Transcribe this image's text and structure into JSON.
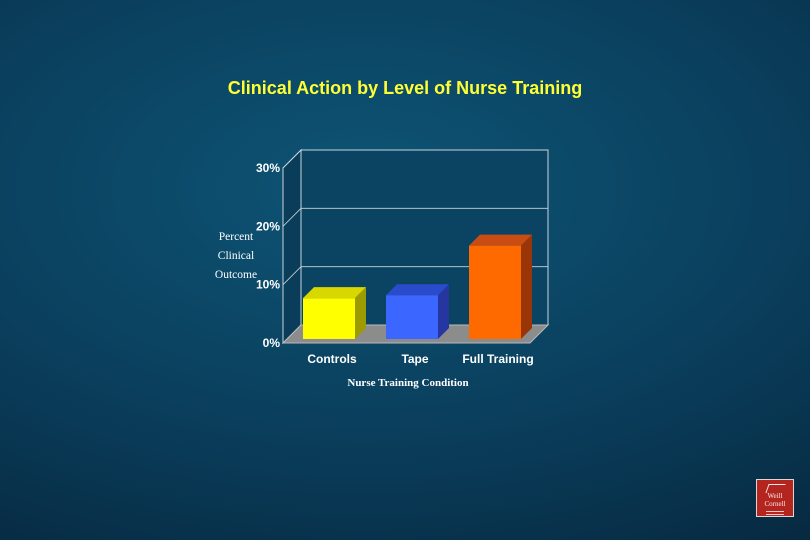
{
  "slide": {
    "title": "Clinical Action by Level of Nurse Training"
  },
  "chart_data": {
    "type": "bar",
    "style": "3d",
    "categories": [
      "Controls",
      "Tape",
      "Full Training"
    ],
    "values": [
      7,
      7.5,
      16
    ],
    "ylim": [
      0,
      30
    ],
    "yticks": [
      "0%",
      "10%",
      "20%",
      "30%"
    ],
    "ylabel_lines": [
      "Percent",
      "Clinical",
      "Outcome"
    ],
    "xlabel": "Nurse Training Condition",
    "grid": true,
    "colors": [
      {
        "front": "#ffff00",
        "top": "#d8d800",
        "side": "#9c9c00"
      },
      {
        "front": "#3b66ff",
        "top": "#2a4ccc",
        "side": "#2536a0"
      },
      {
        "front": "#ff6a00",
        "top": "#c94d12",
        "side": "#9a3508"
      }
    ]
  },
  "logo": {
    "icon": "institution-logo-icon",
    "color": "#b5251f"
  }
}
